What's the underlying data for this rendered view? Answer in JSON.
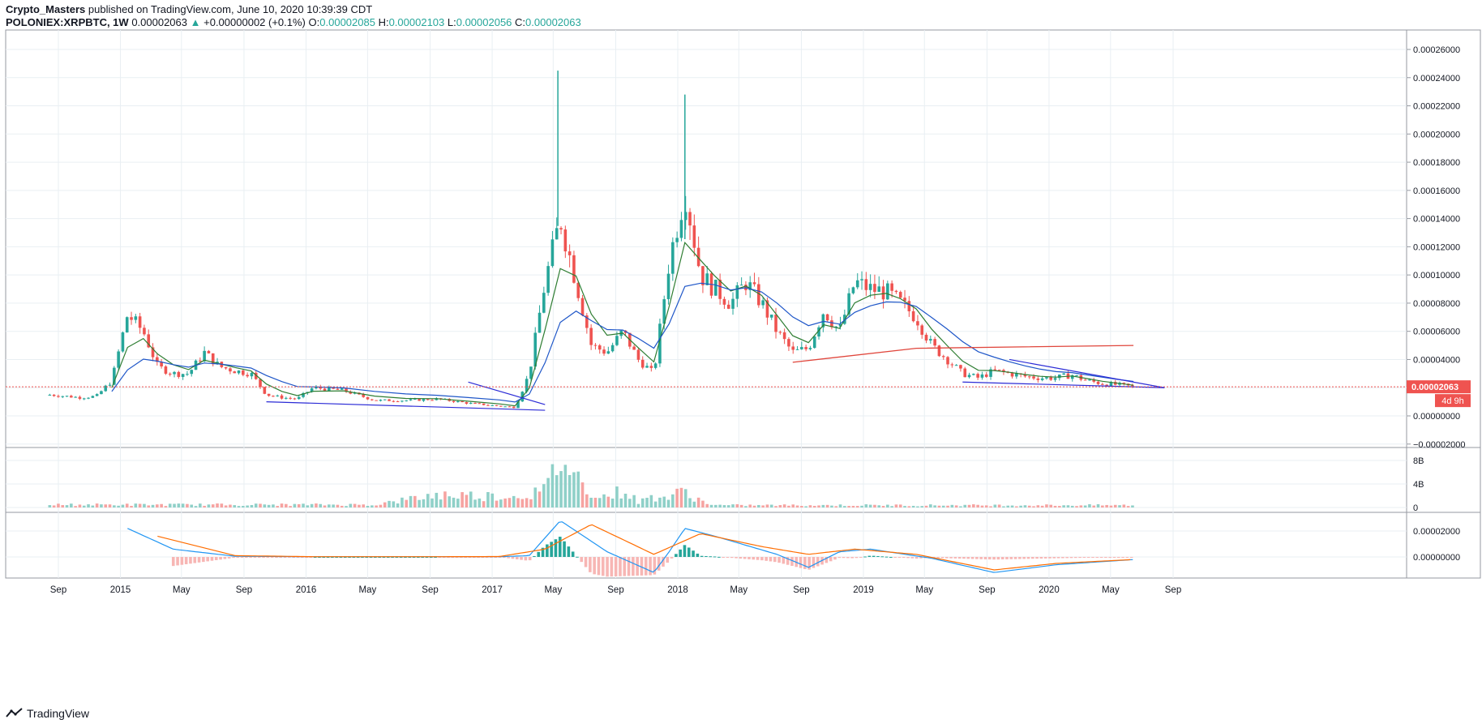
{
  "header": {
    "author": "Crypto_Masters",
    "published": "published on TradingView.com, June 10, 2020 10:39:39 CDT",
    "symbol": "POLONIEX:XRPBTC, 1W",
    "last": "0.00002063",
    "change_arrow": "▲",
    "change": "+0.00000002 (+0.1%)",
    "o_label": "O:",
    "o_value": "0.00002085",
    "h_label": "H:",
    "h_value": "0.00002103",
    "l_label": "L:",
    "l_value": "0.00002056",
    "c_label": "C:",
    "c_value": "0.00002063"
  },
  "price_badge": "0.00002063",
  "countdown_badge": "4d 9h",
  "brand": {
    "logo_icon": "tradingview-logo-icon",
    "name": "TradingView"
  },
  "colors": {
    "up": "#26a69a",
    "down": "#ef5350",
    "ema_fast": "#2e7d32",
    "ema_slow": "#1e56c8",
    "ma_long": "#e0463c",
    "trendline": "#2b2bd6",
    "macd_line": "#2196f3",
    "signal_line": "#ff6d00"
  },
  "chart_data": [
    {
      "type": "candlestick",
      "pane": "price",
      "y_ticks": [
        "0.00026000",
        "0.00024000",
        "0.00022000",
        "0.00020000",
        "0.00018000",
        "0.00016000",
        "0.00014000",
        "0.00012000",
        "0.00010000",
        "0.00008000",
        "0.00006000",
        "0.00004000",
        "0.00002000",
        "0.00000000",
        "−0.00002000"
      ],
      "ylim": [
        -2e-05,
        0.00027
      ],
      "x_ticks": [
        "Sep",
        "2015",
        "May",
        "Sep",
        "2016",
        "May",
        "Sep",
        "2017",
        "May",
        "Sep",
        "2018",
        "May",
        "Sep",
        "2019",
        "May",
        "Sep",
        "2020",
        "May",
        "Sep"
      ],
      "x_tick_dates": [
        "2014-09-01",
        "2015-01-01",
        "2015-05-01",
        "2015-09-01",
        "2016-01-01",
        "2016-05-01",
        "2016-09-01",
        "2017-01-01",
        "2017-05-01",
        "2017-09-01",
        "2018-01-01",
        "2018-05-01",
        "2018-09-01",
        "2019-01-01",
        "2019-05-01",
        "2019-09-01",
        "2020-01-01",
        "2020-05-01",
        "2020-09-01"
      ],
      "last_close": 2.063e-05,
      "series": [
        {
          "kind": "close",
          "dates": [
            "2014-08",
            "2014-10",
            "2014-11",
            "2014-12",
            "2015-01",
            "2015-02",
            "2015-03",
            "2015-04",
            "2015-05",
            "2015-06",
            "2015-07",
            "2015-08",
            "2015-09",
            "2015-10",
            "2015-11",
            "2015-12",
            "2016-01",
            "2016-03",
            "2016-05",
            "2016-07",
            "2016-09",
            "2016-11",
            "2017-01",
            "2017-02",
            "2017-03",
            "2017-04",
            "2017-05",
            "2017-06",
            "2017-07",
            "2017-08",
            "2017-09",
            "2017-10",
            "2017-11",
            "2017-12",
            "2018-01",
            "2018-02",
            "2018-03",
            "2018-04",
            "2018-05",
            "2018-06",
            "2018-07",
            "2018-08",
            "2018-09",
            "2018-10",
            "2018-11",
            "2018-12",
            "2019-01",
            "2019-02",
            "2019-03",
            "2019-04",
            "2019-05",
            "2019-06",
            "2019-07",
            "2019-08",
            "2019-09",
            "2019-10",
            "2019-11",
            "2019-12",
            "2020-01",
            "2020-02",
            "2020-03",
            "2020-04",
            "2020-05",
            "2020-06"
          ],
          "values": [
            1.5e-05,
            1.3e-05,
            1.4e-05,
            2.5e-05,
            7.2e-05,
            6e-05,
            3.5e-05,
            3e-05,
            3e-05,
            4.5e-05,
            3.5e-05,
            3.2e-05,
            3e-05,
            1.5e-05,
            1.3e-05,
            1.2e-05,
            2e-05,
            1.8e-05,
            1.1e-05,
            1.1e-05,
            1.2e-05,
            9e-06,
            7e-06,
            6e-06,
            3e-05,
            9.5e-05,
            0.00014,
            9.5e-05,
            5e-05,
            4.5e-05,
            6e-05,
            4e-05,
            3e-05,
            0.00011,
            0.00016,
            0.0001,
            9e-05,
            8e-05,
            9.5e-05,
            8e-05,
            6e-05,
            4.5e-05,
            4.8e-05,
            7.5e-05,
            6e-05,
            9.5e-05,
            9e-05,
            8.8e-05,
            8e-05,
            7e-05,
            5e-05,
            4e-05,
            3e-05,
            2.7e-05,
            3.2e-05,
            3e-05,
            2.8e-05,
            2.7e-05,
            2.7e-05,
            2.9e-05,
            2.5e-05,
            2.3e-05,
            2.2e-05,
            2.063e-05
          ]
        },
        {
          "kind": "spike_high",
          "dates": [
            "2017-05",
            "2018-01"
          ],
          "values": [
            0.000245,
            0.000228
          ]
        },
        {
          "kind": "long_ma",
          "dates": [
            "2018-08",
            "2019-04",
            "2020-06"
          ],
          "values": [
            3.8e-05,
            4.8e-05,
            5e-05
          ]
        },
        {
          "kind": "trend_upper",
          "dates": [
            "2016-11",
            "2017-04"
          ],
          "values": [
            2.4e-05,
            8e-06
          ]
        },
        {
          "kind": "trend_lower",
          "dates": [
            "2015-10",
            "2017-04"
          ],
          "values": [
            1e-05,
            4e-06
          ]
        },
        {
          "kind": "trend_upper",
          "dates": [
            "2019-10",
            "2020-08"
          ],
          "values": [
            4e-05,
            2e-05
          ]
        },
        {
          "kind": "trend_lower",
          "dates": [
            "2019-07",
            "2020-08"
          ],
          "values": [
            2.4e-05,
            2e-05
          ]
        }
      ]
    },
    {
      "type": "bar",
      "pane": "volume",
      "y_ticks": [
        "8B",
        "4B",
        "0"
      ],
      "series": [
        {
          "name": "",
          "dates": [
            "2016-05",
            "2016-09",
            "2017-02",
            "2017-04",
            "2017-05",
            "2017-06",
            "2017-07",
            "2017-08",
            "2017-09",
            "2017-10",
            "2017-11",
            "2017-12",
            "2018-01",
            "2018-02",
            "2018-03"
          ],
          "values": [
            0.5,
            2.3,
            2.0,
            3.0,
            9.0,
            5.5,
            3.0,
            1.8,
            3.2,
            1.0,
            2.0,
            1.8,
            3.0,
            1.2,
            0.4
          ]
        }
      ]
    },
    {
      "type": "histogram_line",
      "pane": "macd",
      "y_ticks": [
        "0.00002000",
        "0.00000000"
      ],
      "series": [
        {
          "name": "",
          "kind": "macd",
          "dates": [
            "2015-01",
            "2015-04",
            "2015-08",
            "2016-01",
            "2016-09",
            "2017-01",
            "2017-03",
            "2017-05",
            "2017-08",
            "2017-11",
            "2017-12",
            "2018-01",
            "2018-03",
            "2018-07",
            "2018-09",
            "2018-11",
            "2019-01",
            "2019-05",
            "2019-09",
            "2020-01",
            "2020-06"
          ],
          "values": [
            2.2e-05,
            6e-06,
            5e-07,
            2e-07,
            2e-07,
            2e-07,
            1e-06,
            2.8e-05,
            4e-06,
            -1.2e-05,
            4e-06,
            2.2e-05,
            1.6e-05,
            2e-06,
            -8e-06,
            4e-06,
            6e-06,
            -1e-06,
            -1.2e-05,
            -6e-06,
            -2e-06
          ]
        },
        {
          "name": "",
          "kind": "signal",
          "dates": [
            "2015-03",
            "2015-08",
            "2016-01",
            "2016-09",
            "2017-01",
            "2017-04",
            "2017-07",
            "2017-11",
            "2018-02",
            "2018-06",
            "2018-09",
            "2018-12",
            "2019-04",
            "2019-09",
            "2020-01",
            "2020-06"
          ],
          "values": [
            1.6e-05,
            1e-06,
            2e-07,
            2e-07,
            3e-07,
            6e-06,
            2.5e-05,
            2e-06,
            1.8e-05,
            8e-06,
            2e-06,
            6e-06,
            2e-06,
            -1e-05,
            -5e-06,
            -2e-06
          ]
        }
      ]
    }
  ]
}
